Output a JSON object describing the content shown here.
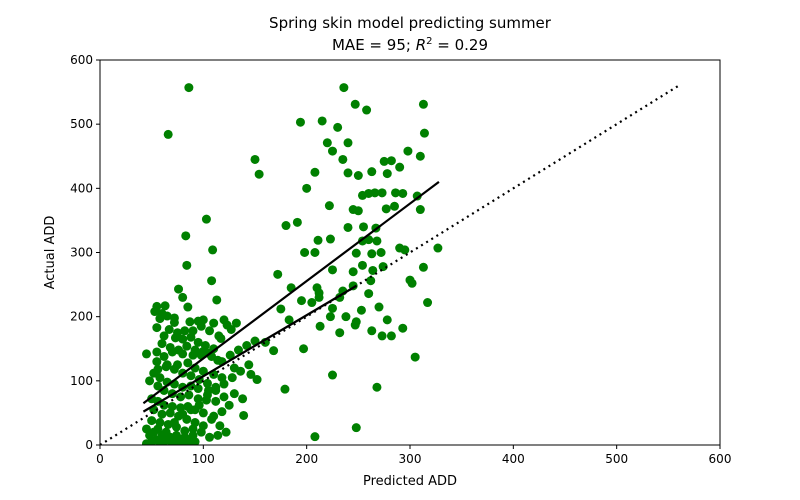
{
  "chart_data": {
    "type": "scatter",
    "title_line1": "Spring skin model predicting summer",
    "title_line2_prefix": "MAE = 95; ",
    "title_line2_r2_base": "R",
    "title_line2_r2_sup": "2",
    "title_line2_suffix": " = 0.29",
    "xlabel": "Predicted ADD",
    "ylabel": "Actual ADD",
    "xlim": [
      0,
      600
    ],
    "ylim": [
      0,
      600
    ],
    "xticks": [
      0,
      100,
      200,
      300,
      400,
      500,
      600
    ],
    "yticks": [
      0,
      100,
      200,
      300,
      400,
      500,
      600
    ],
    "grid": false,
    "point_color": "#008000",
    "line_color": "#000000",
    "series": [
      {
        "points": [
          [
            86,
            557
          ],
          [
            66,
            484
          ],
          [
            236,
            557
          ],
          [
            247,
            531
          ],
          [
            258,
            522
          ],
          [
            313,
            531
          ],
          [
            194,
            503
          ],
          [
            215,
            505
          ],
          [
            314,
            486
          ],
          [
            230,
            495
          ],
          [
            310,
            450
          ],
          [
            220,
            471
          ],
          [
            240,
            471
          ],
          [
            298,
            458
          ],
          [
            225,
            458
          ],
          [
            275,
            442
          ],
          [
            282,
            443
          ],
          [
            290,
            433
          ],
          [
            235,
            445
          ],
          [
            263,
            426
          ],
          [
            278,
            423
          ],
          [
            150,
            445
          ],
          [
            154,
            422
          ],
          [
            240,
            424
          ],
          [
            250,
            420
          ],
          [
            208,
            425
          ],
          [
            200,
            400
          ],
          [
            260,
            392
          ],
          [
            273,
            393
          ],
          [
            266,
            393
          ],
          [
            286,
            393
          ],
          [
            293,
            392
          ],
          [
            254,
            389
          ],
          [
            307,
            388
          ],
          [
            285,
            372
          ],
          [
            277,
            368
          ],
          [
            245,
            367
          ],
          [
            250,
            365
          ],
          [
            222,
            373
          ],
          [
            310,
            367
          ],
          [
            240,
            339
          ],
          [
            255,
            340
          ],
          [
            267,
            338
          ],
          [
            191,
            347
          ],
          [
            180,
            342
          ],
          [
            260,
            320
          ],
          [
            211,
            319
          ],
          [
            223,
            321
          ],
          [
            254,
            318
          ],
          [
            268,
            318
          ],
          [
            272,
            300
          ],
          [
            263,
            298
          ],
          [
            248,
            299
          ],
          [
            290,
            307
          ],
          [
            295,
            304
          ],
          [
            327,
            307
          ],
          [
            208,
            300
          ],
          [
            198,
            300
          ],
          [
            245,
            270
          ],
          [
            254,
            280
          ],
          [
            264,
            272
          ],
          [
            274,
            278
          ],
          [
            225,
            273
          ],
          [
            172,
            266
          ],
          [
            300,
            257
          ],
          [
            302,
            252
          ],
          [
            313,
            277
          ],
          [
            210,
            245
          ],
          [
            212,
            237
          ],
          [
            185,
            245
          ],
          [
            262,
            256
          ],
          [
            235,
            240
          ],
          [
            232,
            230
          ],
          [
            245,
            248
          ],
          [
            260,
            236
          ],
          [
            270,
            215
          ],
          [
            253,
            210
          ],
          [
            248,
            192
          ],
          [
            263,
            178
          ],
          [
            225,
            213
          ],
          [
            238,
            200
          ],
          [
            273,
            170
          ],
          [
            282,
            170
          ],
          [
            278,
            195
          ],
          [
            293,
            182
          ],
          [
            317,
            222
          ],
          [
            305,
            137
          ],
          [
            205,
            222
          ],
          [
            212,
            230
          ],
          [
            195,
            225
          ],
          [
            232,
            175
          ],
          [
            247,
            187
          ],
          [
            197,
            150
          ],
          [
            183,
            195
          ],
          [
            168,
            147
          ],
          [
            175,
            212
          ],
          [
            213,
            185
          ],
          [
            223,
            200
          ],
          [
            150,
            162
          ],
          [
            160,
            160
          ],
          [
            146,
            110
          ],
          [
            152,
            102
          ],
          [
            130,
            80
          ],
          [
            138,
            72
          ],
          [
            139,
            46
          ],
          [
            179,
            87
          ],
          [
            225,
            109
          ],
          [
            268,
            90
          ],
          [
            208,
            13
          ],
          [
            248,
            27
          ],
          [
            127,
            180
          ],
          [
            123,
            187
          ],
          [
            132,
            190
          ],
          [
            120,
            195
          ],
          [
            115,
            170
          ],
          [
            117,
            166
          ],
          [
            113,
            226
          ],
          [
            108,
            256
          ],
          [
            103,
            352
          ],
          [
            109,
            304
          ],
          [
            83,
            326
          ],
          [
            84,
            280
          ],
          [
            85,
            215
          ],
          [
            76,
            243
          ],
          [
            80,
            230
          ],
          [
            63,
            217
          ],
          [
            55,
            216
          ],
          [
            53,
            208
          ],
          [
            60,
            205
          ],
          [
            65,
            201
          ],
          [
            72,
            198
          ],
          [
            58,
            197
          ],
          [
            72,
            191
          ],
          [
            87,
            192
          ],
          [
            95,
            193
          ],
          [
            100,
            195
          ],
          [
            110,
            190
          ],
          [
            98,
            185
          ],
          [
            106,
            178
          ],
          [
            90,
            178
          ],
          [
            82,
            178
          ],
          [
            75,
            175
          ],
          [
            67,
            180
          ],
          [
            55,
            183
          ],
          [
            62,
            170
          ],
          [
            73,
            167
          ],
          [
            80,
            165
          ],
          [
            88,
            168
          ],
          [
            95,
            160
          ],
          [
            102,
            155
          ],
          [
            110,
            150
          ],
          [
            105,
            143
          ],
          [
            98,
            140
          ],
          [
            90,
            140
          ],
          [
            80,
            142
          ],
          [
            70,
            145
          ],
          [
            62,
            138
          ],
          [
            55,
            145
          ],
          [
            45,
            142
          ],
          [
            55,
            130
          ],
          [
            65,
            125
          ],
          [
            75,
            125
          ],
          [
            85,
            128
          ],
          [
            92,
            120
          ],
          [
            100,
            115
          ],
          [
            110,
            110
          ],
          [
            118,
            105
          ],
          [
            112,
            90
          ],
          [
            105,
            85
          ],
          [
            95,
            88
          ],
          [
            88,
            92
          ],
          [
            80,
            90
          ],
          [
            72,
            95
          ],
          [
            65,
            98
          ],
          [
            58,
            105
          ],
          [
            52,
            112
          ],
          [
            48,
            100
          ],
          [
            56,
            92
          ],
          [
            62,
            85
          ],
          [
            70,
            80
          ],
          [
            78,
            75
          ],
          [
            86,
            78
          ],
          [
            95,
            72
          ],
          [
            103,
            70
          ],
          [
            112,
            68
          ],
          [
            120,
            75
          ],
          [
            125,
            62
          ],
          [
            118,
            52
          ],
          [
            110,
            45
          ],
          [
            100,
            50
          ],
          [
            92,
            55
          ],
          [
            85,
            60
          ],
          [
            78,
            58
          ],
          [
            70,
            60
          ],
          [
            62,
            62
          ],
          [
            56,
            68
          ],
          [
            50,
            72
          ],
          [
            52,
            55
          ],
          [
            60,
            48
          ],
          [
            68,
            50
          ],
          [
            76,
            45
          ],
          [
            84,
            40
          ],
          [
            92,
            35
          ],
          [
            100,
            30
          ],
          [
            108,
            40
          ],
          [
            116,
            30
          ],
          [
            122,
            20
          ],
          [
            114,
            15
          ],
          [
            106,
            12
          ],
          [
            98,
            20
          ],
          [
            90,
            15
          ],
          [
            82,
            22
          ],
          [
            74,
            28
          ],
          [
            66,
            32
          ],
          [
            58,
            35
          ],
          [
            50,
            38
          ],
          [
            45,
            25
          ],
          [
            52,
            20
          ],
          [
            60,
            15
          ],
          [
            68,
            12
          ],
          [
            76,
            10
          ],
          [
            84,
            8
          ],
          [
            92,
            5
          ],
          [
            55,
            8
          ],
          [
            62,
            5
          ],
          [
            70,
            3
          ],
          [
            78,
            2
          ],
          [
            86,
            3
          ],
          [
            45,
            2
          ],
          [
            50,
            5
          ],
          [
            58,
            2
          ],
          [
            66,
            8
          ],
          [
            74,
            15
          ],
          [
            82,
            12
          ],
          [
            90,
            25
          ],
          [
            48,
            15
          ],
          [
            56,
            25
          ],
          [
            64,
            20
          ],
          [
            72,
            35
          ],
          [
            80,
            48
          ],
          [
            88,
            55
          ],
          [
            96,
            62
          ],
          [
            104,
            78
          ],
          [
            112,
            85
          ],
          [
            120,
            95
          ],
          [
            128,
            105
          ],
          [
            136,
            115
          ],
          [
            144,
            125
          ],
          [
            118,
            130
          ],
          [
            126,
            140
          ],
          [
            134,
            148
          ],
          [
            142,
            155
          ],
          [
            130,
            120
          ],
          [
            96,
            102
          ],
          [
            104,
            96
          ],
          [
            88,
            108
          ],
          [
            80,
            112
          ],
          [
            72,
            118
          ],
          [
            64,
            122
          ],
          [
            56,
            118
          ],
          [
            60,
            158
          ],
          [
            68,
            152
          ],
          [
            76,
            148
          ],
          [
            84,
            154
          ],
          [
            92,
            148
          ],
          [
            100,
            146
          ],
          [
            108,
            138
          ],
          [
            114,
            132
          ]
        ]
      }
    ],
    "fit_line_1": [
      [
        42,
        65
      ],
      [
        328,
        410
      ]
    ],
    "fit_line_2": [
      [
        42,
        52
      ],
      [
        248,
        248
      ]
    ],
    "identity_line": [
      [
        0,
        0
      ],
      [
        560,
        560
      ]
    ]
  }
}
